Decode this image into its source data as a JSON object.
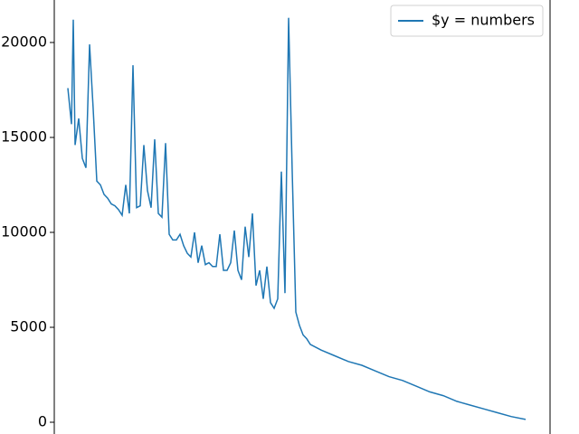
{
  "chart_data": {
    "type": "line",
    "x": [
      0,
      4,
      6,
      8,
      12,
      16,
      20,
      24,
      28,
      32,
      36,
      40,
      44,
      48,
      52,
      56,
      60,
      64,
      68,
      72,
      76,
      80,
      84,
      88,
      92,
      96,
      100,
      104,
      108,
      112,
      116,
      120,
      124,
      128,
      132,
      136,
      140,
      144,
      148,
      152,
      156,
      160,
      164,
      168,
      172,
      176,
      180,
      184,
      188,
      192,
      196,
      200,
      204,
      208,
      212,
      216,
      220,
      224,
      228,
      232,
      236,
      240,
      244,
      248,
      252,
      256,
      260,
      264,
      268,
      280,
      295,
      310,
      325,
      340,
      355,
      370,
      385,
      400,
      415,
      430,
      445,
      460,
      475,
      490,
      506
    ],
    "series": [
      {
        "name": "$y = numbers",
        "color": "#1f77b4",
        "values": [
          17600,
          15700,
          21200,
          14600,
          16000,
          13900,
          13400,
          19900,
          16500,
          12700,
          12500,
          12000,
          11800,
          11500,
          11400,
          11200,
          10900,
          12500,
          11000,
          18800,
          11300,
          11400,
          14600,
          12200,
          11300,
          14900,
          11000,
          10800,
          14700,
          9900,
          9600,
          9600,
          9900,
          9300,
          8900,
          8700,
          10000,
          8400,
          9300,
          8300,
          8400,
          8200,
          8200,
          9900,
          8000,
          8000,
          8400,
          10100,
          8000,
          7500,
          10300,
          8700,
          11000,
          7200,
          8000,
          6500,
          8200,
          6300,
          6000,
          6500,
          13200,
          6800,
          21300,
          13200,
          5800,
          5100,
          4600,
          4400,
          4100,
          3800,
          3500,
          3200,
          3000,
          2700,
          2400,
          2200,
          1900,
          1600,
          1400,
          1100,
          900,
          700,
          500,
          300,
          150
        ]
      }
    ],
    "xlim": [
      -15,
      533
    ],
    "ylim": [
      -619,
      22238
    ],
    "yticks": [
      0,
      5000,
      10000,
      15000,
      20000
    ],
    "legend": "upper right"
  }
}
